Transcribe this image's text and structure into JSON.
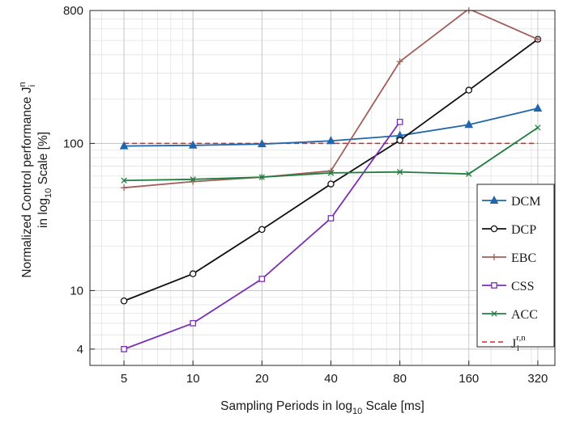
{
  "chart_data": {
    "type": "line",
    "title": "",
    "xlabel": {
      "main": "Sampling Periods in log",
      "sub": "10",
      "tail": " Scale [ms]"
    },
    "ylabel": {
      "line1": {
        "main": "Normalized Control performance J",
        "sup": "n",
        "sub": "i"
      },
      "line2": {
        "main": "in log",
        "sub": "10",
        "tail": " Scale [%]"
      }
    },
    "x_scale": "log",
    "y_scale": "log",
    "xlim": [
      3.55,
      380
    ],
    "ylim": [
      3.1,
      800
    ],
    "x_ticks": [
      5,
      10,
      20,
      40,
      80,
      160,
      320
    ],
    "x_tick_labels": [
      "5",
      "10",
      "20",
      "40",
      "80",
      "160",
      "320"
    ],
    "y_ticks": [
      4,
      10,
      100,
      800
    ],
    "y_tick_labels": [
      "4",
      "10",
      "100",
      "800"
    ],
    "grid": true,
    "legend_position": "right",
    "series": [
      {
        "name": "DCM",
        "color": "#2166ac",
        "marker": "triangle",
        "x": [
          5,
          10,
          20,
          40,
          80,
          160,
          320
        ],
        "y": [
          96,
          97,
          99,
          104,
          113,
          134,
          173
        ]
      },
      {
        "name": "DCP",
        "color": "#111111",
        "marker": "circle",
        "x": [
          5,
          10,
          20,
          40,
          80,
          160,
          320
        ],
        "y": [
          8.5,
          13,
          26,
          53,
          105,
          230,
          510
        ]
      },
      {
        "name": "EBC",
        "color": "#a0605a",
        "marker": "plus",
        "x": [
          5,
          10,
          20,
          40,
          80,
          160,
          320
        ],
        "y": [
          50,
          55,
          59,
          65,
          360,
          820,
          510
        ]
      },
      {
        "name": "CSS",
        "color": "#7b2fb5",
        "marker": "square",
        "x": [
          5,
          10,
          20,
          40,
          80
        ],
        "y": [
          4,
          6,
          12,
          31,
          140
        ]
      },
      {
        "name": "ACC",
        "color": "#1f7f3f",
        "marker": "x",
        "x": [
          5,
          10,
          20,
          40,
          80,
          160,
          320
        ],
        "y": [
          56,
          57,
          59,
          63,
          64,
          62,
          128
        ]
      }
    ],
    "reference": {
      "name": {
        "main": "J",
        "sup": "r,n",
        "sub": "i"
      },
      "color": "#d62728",
      "style": "dashed",
      "x": [
        5,
        320
      ],
      "y": [
        100,
        100
      ]
    }
  }
}
